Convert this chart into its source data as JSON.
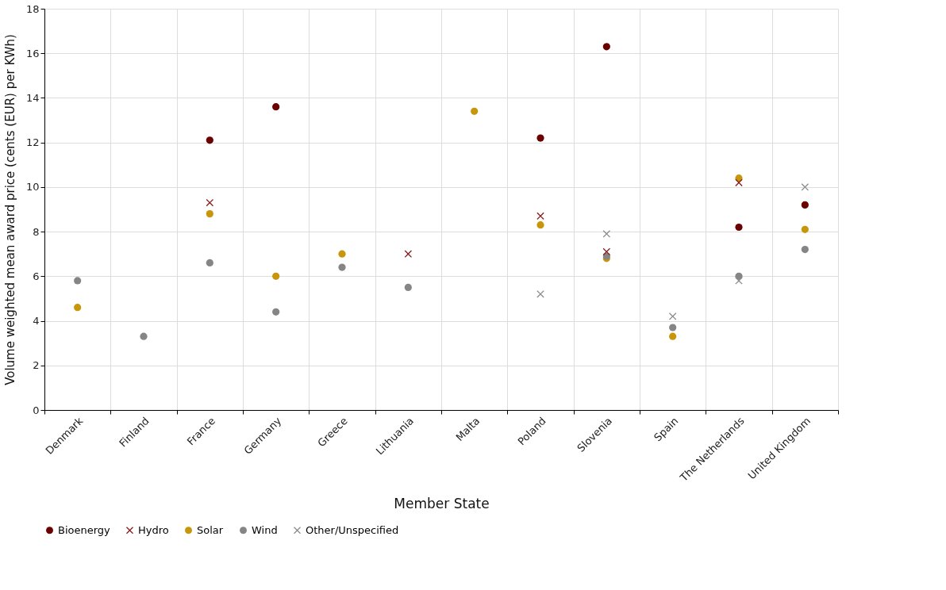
{
  "chart_data": {
    "type": "scatter",
    "xlabel": "Member State",
    "ylabel": "Volume weighted mean award price (cents (EUR) per KWh)",
    "categories": [
      "Denmark",
      "Finland",
      "France",
      "Germany",
      "Greece",
      "Lithuania",
      "Malta",
      "Poland",
      "Slovenia",
      "Spain",
      "The Netherlands",
      "United Kingdom"
    ],
    "series": [
      {
        "name": "Bioenergy",
        "color": "#6b0000",
        "marker": "circle",
        "values": [
          null,
          null,
          12.1,
          13.6,
          null,
          null,
          null,
          12.2,
          16.3,
          null,
          8.2,
          9.2
        ]
      },
      {
        "name": "Hydro",
        "color": "#8b1a1a",
        "marker": "cross",
        "values": [
          null,
          null,
          9.3,
          null,
          null,
          7.0,
          null,
          8.7,
          7.1,
          null,
          10.2,
          null
        ]
      },
      {
        "name": "Solar",
        "color": "#c8960a",
        "marker": "circle",
        "values": [
          4.6,
          null,
          8.8,
          6.0,
          7.0,
          null,
          13.4,
          8.3,
          6.8,
          3.3,
          10.4,
          8.1
        ]
      },
      {
        "name": "Wind",
        "color": "#858585",
        "marker": "circle",
        "values": [
          5.8,
          3.3,
          6.6,
          4.4,
          6.4,
          5.5,
          null,
          null,
          6.9,
          3.7,
          6.0,
          7.2
        ]
      },
      {
        "name": "Other/Unspecified",
        "color": "#8c8c8c",
        "marker": "cross",
        "values": [
          null,
          null,
          null,
          null,
          null,
          null,
          null,
          5.2,
          7.9,
          4.2,
          5.8,
          10.0
        ]
      }
    ],
    "ylim": [
      0,
      18
    ],
    "yticks": [
      0,
      2,
      4,
      6,
      8,
      10,
      12,
      14,
      16,
      18
    ],
    "grid": true,
    "legend": "bottom"
  }
}
